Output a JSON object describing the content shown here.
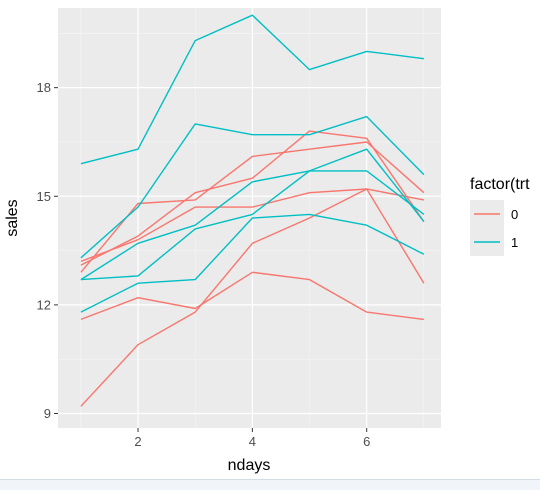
{
  "chart_data": {
    "type": "line",
    "xlabel": "ndays",
    "ylabel": "sales",
    "x_ticks": [
      2,
      4,
      6
    ],
    "y_ticks": [
      9,
      12,
      15,
      18
    ],
    "xlim": [
      0.6,
      7.3
    ],
    "ylim": [
      8.6,
      20.2
    ],
    "grid": true,
    "legend": {
      "title": "factor(trt",
      "placement": "right",
      "entries": [
        {
          "label": "0",
          "color": "#F8766D"
        },
        {
          "label": "1",
          "color": "#00BFC4"
        }
      ]
    },
    "series": [
      {
        "group": "0",
        "color": "#F8766D",
        "x": [
          1,
          2,
          3,
          4,
          5,
          6,
          7
        ],
        "y": [
          9.2,
          10.9,
          11.8,
          13.7,
          14.4,
          15.2,
          12.6
        ]
      },
      {
        "group": "0",
        "color": "#F8766D",
        "x": [
          1,
          2,
          3,
          4,
          5,
          6,
          7
        ],
        "y": [
          11.6,
          12.2,
          11.9,
          12.9,
          12.7,
          11.8,
          11.6
        ]
      },
      {
        "group": "0",
        "color": "#F8766D",
        "x": [
          1,
          2,
          3,
          4,
          5,
          6,
          7
        ],
        "y": [
          12.9,
          14.8,
          14.9,
          16.1,
          16.3,
          16.5,
          15.1
        ]
      },
      {
        "group": "0",
        "color": "#F8766D",
        "x": [
          1,
          2,
          3,
          4,
          5,
          6,
          7
        ],
        "y": [
          13.1,
          13.9,
          15.1,
          15.5,
          16.8,
          16.6,
          14.3
        ]
      },
      {
        "group": "0",
        "color": "#F8766D",
        "x": [
          1,
          2,
          3,
          4,
          5,
          6,
          7
        ],
        "y": [
          13.2,
          13.8,
          14.7,
          14.7,
          15.1,
          15.2,
          14.9
        ]
      },
      {
        "group": "1",
        "color": "#00BFC4",
        "x": [
          1,
          2,
          3,
          4,
          5,
          6,
          7
        ],
        "y": [
          15.9,
          16.3,
          19.3,
          20.0,
          18.5,
          19.0,
          18.8
        ]
      },
      {
        "group": "1",
        "color": "#00BFC4",
        "x": [
          1,
          2,
          3,
          4,
          5,
          6,
          7
        ],
        "y": [
          13.3,
          14.7,
          17.0,
          16.7,
          16.7,
          17.2,
          15.6
        ]
      },
      {
        "group": "1",
        "color": "#00BFC4",
        "x": [
          1,
          2,
          3,
          4,
          5,
          6,
          7
        ],
        "y": [
          12.7,
          13.7,
          14.2,
          15.4,
          15.7,
          16.3,
          14.3
        ]
      },
      {
        "group": "1",
        "color": "#00BFC4",
        "x": [
          1,
          2,
          3,
          4,
          5,
          6,
          7
        ],
        "y": [
          12.7,
          12.8,
          14.1,
          14.5,
          15.7,
          15.7,
          14.5
        ]
      },
      {
        "group": "1",
        "color": "#00BFC4",
        "x": [
          1,
          2,
          3,
          4,
          5,
          6,
          7
        ],
        "y": [
          11.8,
          12.6,
          12.7,
          14.4,
          14.5,
          14.2,
          13.4
        ]
      }
    ]
  },
  "colors": {
    "panel_background": "#EBEBEB",
    "grid_major": "#FFFFFF",
    "grid_minor": "#F5F5F5"
  }
}
